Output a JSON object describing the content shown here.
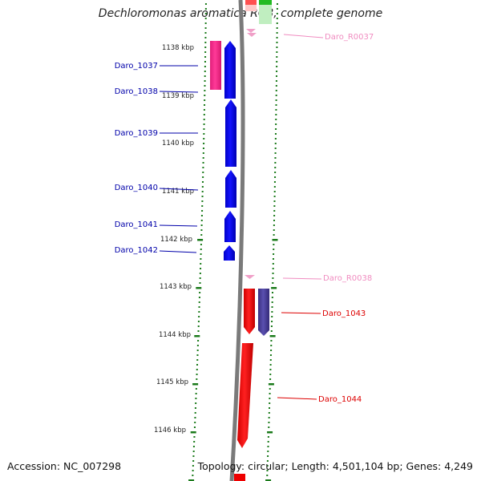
{
  "title": "Dechloromonas aromatica RCB, complete genome",
  "footer": {
    "accession": "Accession: NC_007298",
    "summary": "Topology: circular; Length: 4,501,104 bp; Genes: 4,249"
  },
  "ruler_ticks": [
    "1138 kbp",
    "1139 kbp",
    "1140 kbp",
    "1141 kbp",
    "1142 kbp",
    "1143 kbp",
    "1144 kbp",
    "1145 kbp",
    "1146 kbp"
  ],
  "left_features": [
    {
      "label": "Daro_1037",
      "color": "#0000aa"
    },
    {
      "label": "Daro_1038",
      "color": "#0000aa"
    },
    {
      "label": "Daro_1039",
      "color": "#0000aa"
    },
    {
      "label": "Daro_1040",
      "color": "#0000aa"
    },
    {
      "label": "Daro_1041",
      "color": "#0000aa"
    },
    {
      "label": "Daro_1042",
      "color": "#0000aa"
    }
  ],
  "right_features": [
    {
      "label": "Daro_R0037",
      "color": "#f08cc0"
    },
    {
      "label": "Daro_R0038",
      "color": "#f08cc0"
    },
    {
      "label": "Daro_1043",
      "color": "#dd0000"
    },
    {
      "label": "Daro_1044",
      "color": "#dd0000"
    }
  ],
  "colors": {
    "tick": "#1a7a1a",
    "backbone": "#7a7a7a",
    "gene_forward": "#0000ee",
    "gene_pink": "#ff2d8e",
    "gene_reverse": "#ee0000",
    "gene_purple": "#4a3f9a",
    "rna": "#f0a0c8"
  }
}
